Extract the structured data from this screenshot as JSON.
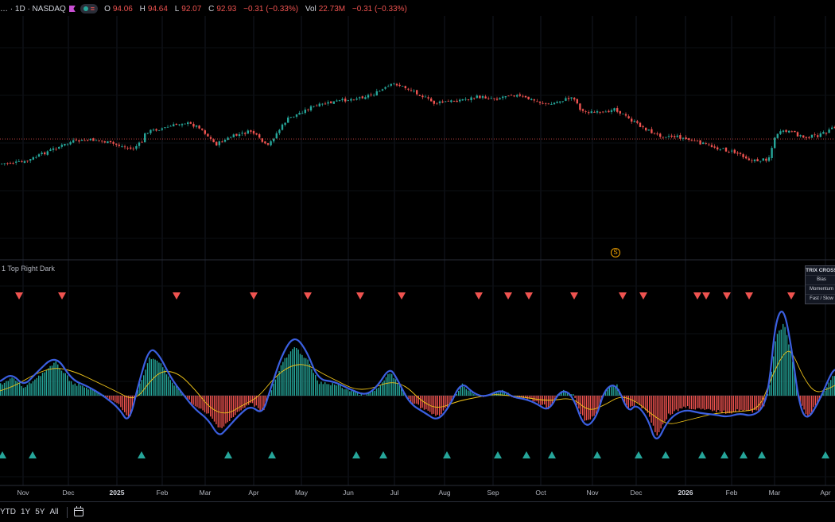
{
  "header": {
    "symbol": "… · 1D · NASDAQ",
    "ohlc": [
      {
        "label": "O",
        "value": "94.06"
      },
      {
        "label": "H",
        "value": "94.64"
      },
      {
        "label": "L",
        "value": "92.07"
      },
      {
        "label": "C",
        "value": "92.93"
      },
      {
        "label": "",
        "value": "−0.31 (−0.33%)"
      },
      {
        "label": "Vol",
        "value": "22.73M"
      },
      {
        "label": "",
        "value": "−0.31 (−0.33%)"
      }
    ],
    "flag_color": "#c94fd3",
    "status_dot_color": "#26a69a"
  },
  "indicator": {
    "title": "1 Top Right Dark",
    "legend_title": "TRIX CROSS",
    "legend_items": [
      "Bias",
      "Momentum",
      "Fast / Slow"
    ]
  },
  "session_marker": "S",
  "x_axis": {
    "labels": [
      "Nov",
      "Dec",
      "2025",
      "Feb",
      "Mar",
      "Apr",
      "May",
      "Jun",
      "Jul",
      "Aug",
      "Sep",
      "Oct",
      "Nov",
      "Dec",
      "2026",
      "Feb",
      "Mar",
      "Apr"
    ],
    "year_labels": [
      "2025",
      "2026"
    ]
  },
  "bottom_bar": {
    "ranges": [
      "YTD",
      "1Y",
      "5Y",
      "All"
    ],
    "calendar_icon": "calendar-icon"
  },
  "colors": {
    "up": "#26a69a",
    "down": "#ef5350",
    "trix_fast": "#2962ff",
    "trix_slow": "#f0c419",
    "hist_up": "#26a69a",
    "hist_down": "#ef5350",
    "price_line": "#ef5350"
  }
}
